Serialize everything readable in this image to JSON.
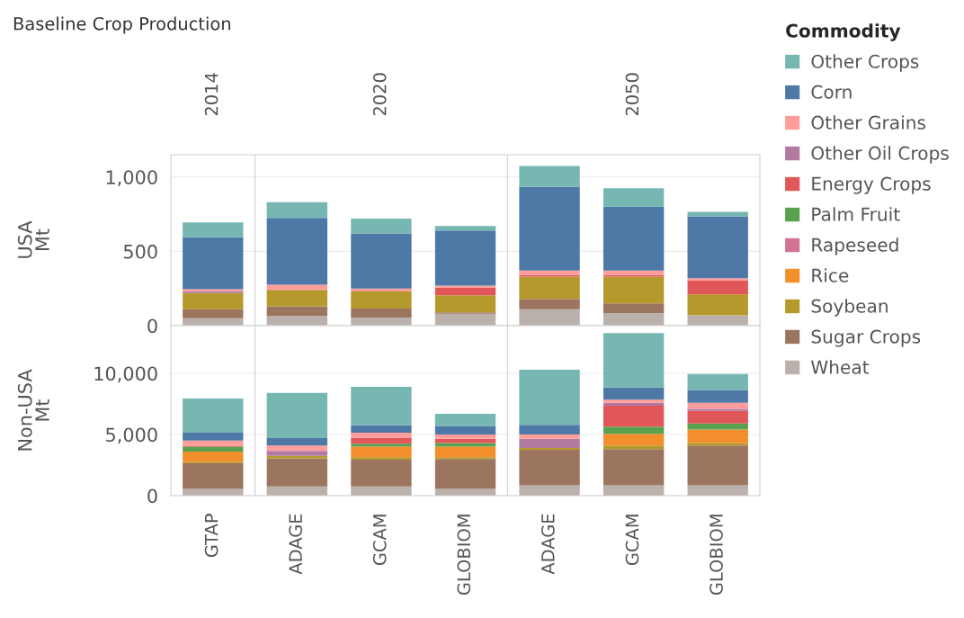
{
  "chart_data": [
    {
      "type": "bar",
      "title": "Baseline Crop Production",
      "ylabel": "USA\nMt",
      "legend_title": "Commodity",
      "legend": "right",
      "stacked": true,
      "grid": "y",
      "annotations": [
        "2014",
        "2020",
        "2050"
      ],
      "categories": [
        null,
        null,
        null,
        null,
        null,
        null,
        null
      ],
      "ylim": [
        0,
        1150
      ],
      "yticks": [
        0,
        500,
        {
          "value": 1000,
          "label": "1,000"
        }
      ],
      "series": [
        {
          "name": "Wheat",
          "color": "#bab0ac",
          "values": [
            50,
            65,
            55,
            80,
            110,
            85,
            70
          ]
        },
        {
          "name": "Sugar Crops",
          "color": "#9c755f",
          "values": [
            60,
            65,
            60,
            10,
            70,
            65,
            null
          ]
        },
        {
          "name": "Soybean",
          "color": "#b6992d",
          "values": [
            110,
            110,
            115,
            115,
            150,
            180,
            140
          ]
        },
        {
          "name": "Rice",
          "color": "#f28e2b",
          "values": [
            0,
            0,
            0,
            0,
            0,
            0,
            0
          ]
        },
        {
          "name": "Rapeseed",
          "color": "#d37295",
          "values": [
            0,
            0,
            0,
            0,
            0,
            0,
            0
          ]
        },
        {
          "name": "Palm Fruit",
          "color": "#59a14f",
          "values": [
            0,
            0,
            0,
            0,
            0,
            0,
            0
          ]
        },
        {
          "name": "Energy Crops",
          "color": "#e15759",
          "values": [
            0,
            0,
            0,
            50,
            10,
            10,
            95
          ]
        },
        {
          "name": "Other Oil Crops",
          "color": "#b07aa1",
          "values": [
            10,
            0,
            0,
            0,
            0,
            0,
            0
          ]
        },
        {
          "name": "Other Grains",
          "color": "#ff9d9a",
          "values": [
            15,
            35,
            20,
            15,
            30,
            30,
            15
          ]
        },
        {
          "name": "Corn",
          "color": "#4e79a7",
          "values": [
            350,
            450,
            370,
            370,
            565,
            430,
            415
          ]
        },
        {
          "name": "Other Crops",
          "color": "#76b7b2",
          "values": [
            100,
            105,
            100,
            30,
            140,
            125,
            30
          ]
        }
      ]
    },
    {
      "type": "bar",
      "ylabel": "Non-USA\nMt",
      "stacked": true,
      "grid": "y",
      "categories": [
        "GTAP",
        "ADAGE",
        "GCAM",
        "GLOBIOM",
        "ADAGE",
        "GCAM",
        "GLOBIOM"
      ],
      "ylim": [
        0,
        13900
      ],
      "yticks": [
        0,
        {
          "value": 5000,
          "label": "5,000"
        },
        {
          "value": 10000,
          "label": "10,000"
        }
      ],
      "series": [
        {
          "color": "#bab0ac",
          "values": [
            550,
            750,
            750,
            550,
            850,
            850,
            850
          ]
        },
        {
          "color": "#9c755f",
          "values": [
            2100,
            2300,
            2200,
            2450,
            2900,
            2950,
            3250
          ]
        },
        {
          "color": "#b6992d",
          "values": [
            100,
            200,
            200,
            150,
            150,
            300,
            200
          ]
        },
        {
          "color": "#f28e2b",
          "values": [
            850,
            0,
            850,
            850,
            0,
            950,
            1100
          ]
        },
        {
          "color": "#d37295",
          "values": [
            0,
            0,
            0,
            0,
            0,
            0,
            0
          ]
        },
        {
          "color": "#59a14f",
          "values": [
            400,
            0,
            250,
            300,
            0,
            600,
            500
          ]
        },
        {
          "color": "#e15759",
          "values": [
            50,
            0,
            500,
            350,
            0,
            1700,
            1050
          ]
        },
        {
          "color": "#b07aa1",
          "values": [
            0,
            400,
            0,
            0,
            750,
            250,
            150
          ]
        },
        {
          "color": "#ff9d9a",
          "values": [
            450,
            450,
            400,
            350,
            350,
            250,
            500
          ]
        },
        {
          "color": "#4e79a7",
          "values": [
            650,
            600,
            600,
            700,
            800,
            1000,
            1050
          ]
        },
        {
          "color": "#76b7b2",
          "values": [
            2800,
            3700,
            3150,
            1000,
            4500,
            4450,
            1300
          ]
        }
      ]
    }
  ]
}
